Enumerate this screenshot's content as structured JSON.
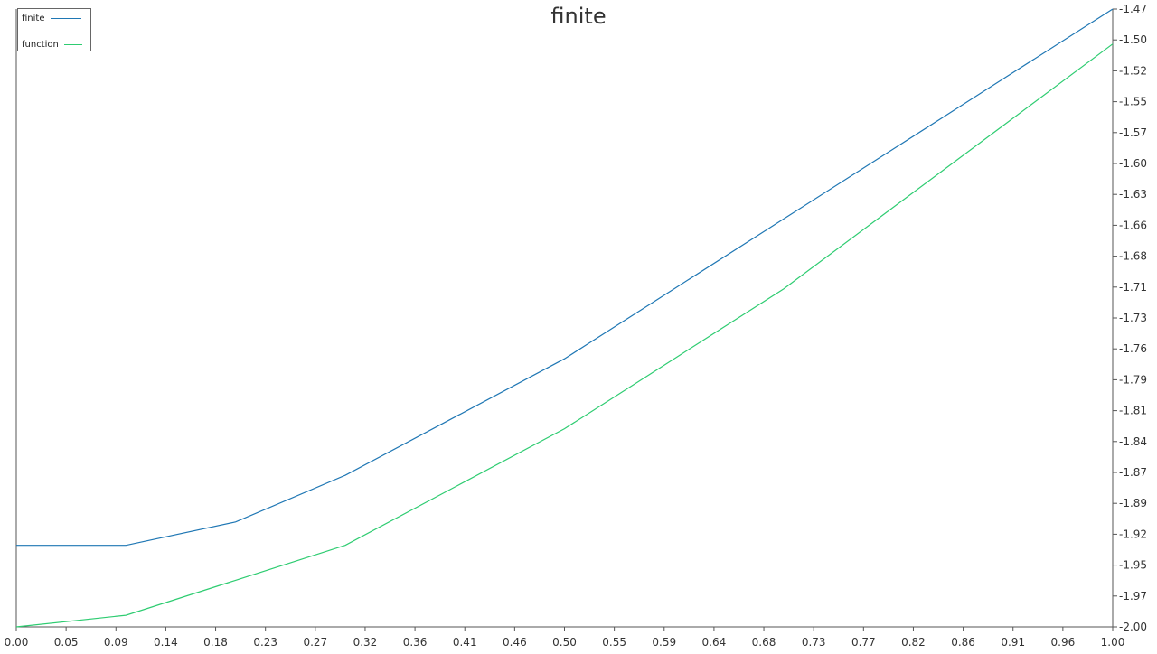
{
  "chart_data": {
    "type": "line",
    "title": "finite",
    "xlabel": "",
    "ylabel": "",
    "xlim": [
      0.0,
      1.0
    ],
    "ylim": [
      -2.0,
      -1.47
    ],
    "x_ticks": [
      "0.00",
      "0.05",
      "0.09",
      "0.14",
      "0.18",
      "0.23",
      "0.27",
      "0.32",
      "0.36",
      "0.41",
      "0.46",
      "0.50",
      "0.55",
      "0.59",
      "0.64",
      "0.68",
      "0.73",
      "0.77",
      "0.82",
      "0.86",
      "0.91",
      "0.96",
      "1.00"
    ],
    "y_ticks": [
      "-1.47",
      "-1.50",
      "-1.52",
      "-1.55",
      "-1.57",
      "-1.60",
      "-1.63",
      "-1.66",
      "-1.68",
      "-1.71",
      "-1.73",
      "-1.76",
      "-1.79",
      "-1.81",
      "-1.84",
      "-1.87",
      "-1.89",
      "-1.92",
      "-1.95",
      "-1.97",
      "-2.00"
    ],
    "y_axis_side": "right",
    "grid": false,
    "legend_position": "top-left",
    "x": [
      0.0,
      0.1,
      0.2,
      0.3,
      0.4,
      0.5,
      0.6,
      0.7,
      0.8,
      0.9,
      1.0
    ],
    "series": [
      {
        "name": "finite",
        "color": "#1f77b4",
        "values": [
          -1.93,
          -1.93,
          -1.91,
          -1.87,
          -1.82,
          -1.77,
          -1.71,
          -1.65,
          -1.59,
          -1.53,
          -1.47
        ]
      },
      {
        "name": "function",
        "color": "#2ecc71",
        "values": [
          -2.0,
          -1.99,
          -1.96,
          -1.93,
          -1.88,
          -1.83,
          -1.77,
          -1.71,
          -1.64,
          -1.57,
          -1.5
        ]
      }
    ]
  }
}
